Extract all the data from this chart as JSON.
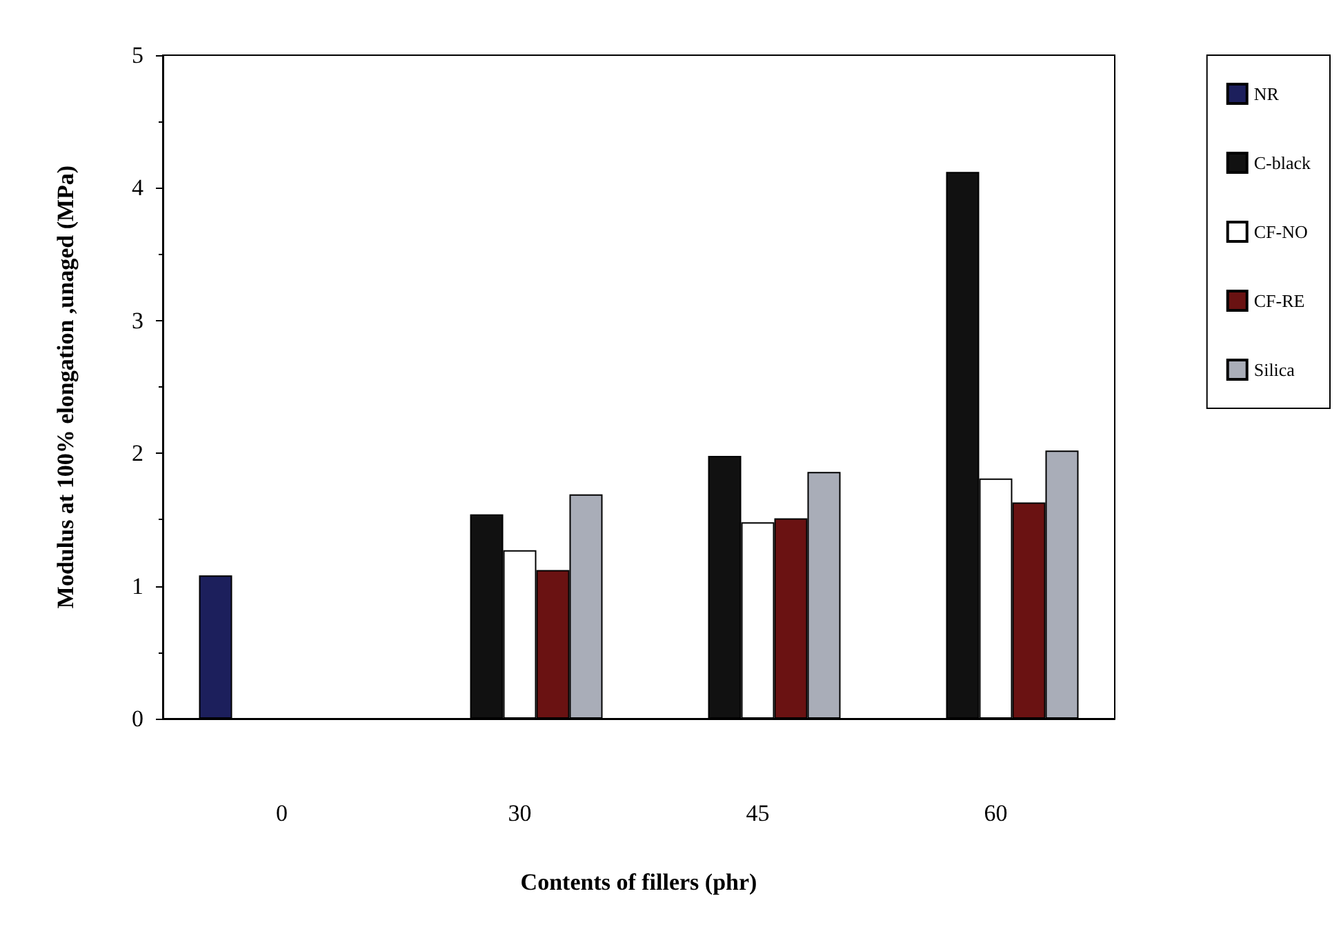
{
  "chart_data": {
    "type": "bar",
    "xlabel": "Contents of fillers (phr)",
    "ylabel": "Modulus at 100% elongation ,unaged (MPa)",
    "categories": [
      "0",
      "30",
      "45",
      "60"
    ],
    "series": [
      {
        "name": "NR",
        "color": "#1c1f5c",
        "values": [
          1.08,
          null,
          null,
          null
        ]
      },
      {
        "name": "C-black",
        "color": "#111111",
        "values": [
          null,
          1.54,
          1.98,
          4.12
        ]
      },
      {
        "name": "CF-NO",
        "color": "#ffffff",
        "values": [
          null,
          1.27,
          1.48,
          1.81
        ]
      },
      {
        "name": "CF-RE",
        "color": "#6a1212",
        "values": [
          null,
          1.12,
          1.51,
          1.63
        ]
      },
      {
        "name": "Silica",
        "color": "#a9adb8",
        "values": [
          null,
          1.69,
          1.86,
          2.02
        ]
      }
    ],
    "ylim": [
      0,
      5
    ],
    "yticks": [
      0,
      1,
      2,
      3,
      4,
      5
    ],
    "grid": false,
    "legend": "right"
  }
}
